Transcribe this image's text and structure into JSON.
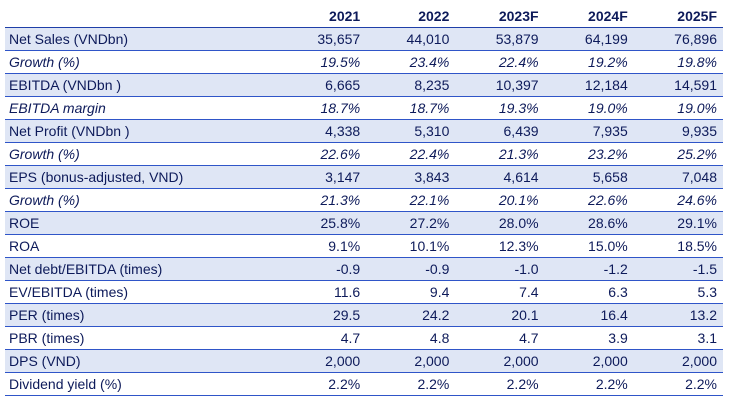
{
  "columns": [
    "",
    "2021",
    "2022",
    "2023F",
    "2024F",
    "2025F"
  ],
  "rows": [
    {
      "label": "Net Sales (VNDbn)",
      "values": [
        "35,657",
        "44,010",
        "53,879",
        "64,199",
        "76,896"
      ],
      "italic": false,
      "shaded": true
    },
    {
      "label": "Growth (%)",
      "values": [
        "19.5%",
        "23.4%",
        "22.4%",
        "19.2%",
        "19.8%"
      ],
      "italic": true,
      "shaded": false
    },
    {
      "label": "EBITDA (VNDbn )",
      "values": [
        "6,665",
        "8,235",
        "10,397",
        "12,184",
        "14,591"
      ],
      "italic": false,
      "shaded": true
    },
    {
      "label": "EBITDA margin",
      "values": [
        "18.7%",
        "18.7%",
        "19.3%",
        "19.0%",
        "19.0%"
      ],
      "italic": true,
      "shaded": false
    },
    {
      "label": "Net Profit (VNDbn )",
      "values": [
        "4,338",
        "5,310",
        "6,439",
        "7,935",
        "9,935"
      ],
      "italic": false,
      "shaded": true
    },
    {
      "label": "Growth (%)",
      "values": [
        "22.6%",
        "22.4%",
        "21.3%",
        "23.2%",
        "25.2%"
      ],
      "italic": true,
      "shaded": false
    },
    {
      "label": "EPS (bonus-adjusted, VND)",
      "values": [
        "3,147",
        "3,843",
        "4,614",
        "5,658",
        "7,048"
      ],
      "italic": false,
      "shaded": true
    },
    {
      "label": "Growth (%)",
      "values": [
        "21.3%",
        "22.1%",
        "20.1%",
        "22.6%",
        "24.6%"
      ],
      "italic": true,
      "shaded": false
    },
    {
      "label": "ROE",
      "values": [
        "25.8%",
        "27.2%",
        "28.0%",
        "28.6%",
        "29.1%"
      ],
      "italic": false,
      "shaded": true
    },
    {
      "label": "ROA",
      "values": [
        "9.1%",
        "10.1%",
        "12.3%",
        "15.0%",
        "18.5%"
      ],
      "italic": false,
      "shaded": false
    },
    {
      "label": "Net debt/EBITDA (times)",
      "values": [
        "-0.9",
        "-0.9",
        "-1.0",
        "-1.2",
        "-1.5"
      ],
      "italic": false,
      "shaded": true
    },
    {
      "label": "EV/EBITDA (times)",
      "values": [
        "11.6",
        "9.4",
        "7.4",
        "6.3",
        "5.3"
      ],
      "italic": false,
      "shaded": false
    },
    {
      "label": "PER (times)",
      "values": [
        "29.5",
        "24.2",
        "20.1",
        "16.4",
        "13.2"
      ],
      "italic": false,
      "shaded": true
    },
    {
      "label": "PBR (times)",
      "values": [
        "4.7",
        "4.8",
        "4.7",
        "3.9",
        "3.1"
      ],
      "italic": false,
      "shaded": false
    },
    {
      "label": "DPS (VND)",
      "values": [
        "2,000",
        "2,000",
        "2,000",
        "2,000",
        "2,000"
      ],
      "italic": false,
      "shaded": true
    },
    {
      "label": "Dividend yield (%)",
      "values": [
        "2.2%",
        "2.2%",
        "2.2%",
        "2.2%",
        "2.2%"
      ],
      "italic": false,
      "shaded": false
    }
  ],
  "colors": {
    "text": "#0d1a5a",
    "shade": "#dfe6f5",
    "rule": "#2f55c8"
  }
}
